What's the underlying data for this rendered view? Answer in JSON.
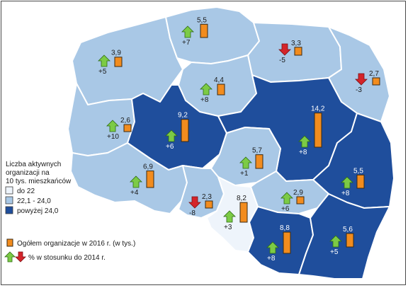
{
  "legend": {
    "title_lines": [
      "Liczba aktywnych",
      "organizacji na",
      "10 tys. mieszkańców"
    ],
    "classes": [
      {
        "label": "do 22",
        "color": "#eef4fb"
      },
      {
        "label": "22,1 - 24,0",
        "color": "#a9c8e6"
      },
      {
        "label": "powyżej 24,0",
        "color": "#1f4e9c"
      }
    ],
    "bar_label": "Ogółem organizacje w 2016 r. (w tys.)",
    "change_label": "% w stosunku do 2014 r."
  },
  "colors": {
    "bar": "#f28c1e",
    "increase": "#7ccb45",
    "decrease": "#d4242a"
  },
  "regions": [
    {
      "id": "pomorskie",
      "class": "22,1 - 24,0",
      "value": "5,5",
      "value_num": 5.5,
      "change": "+7",
      "direction": "up"
    },
    {
      "id": "zachodniopomorskie",
      "class": "22,1 - 24,0",
      "value": "3,9",
      "value_num": 3.9,
      "change": "+5",
      "direction": "up"
    },
    {
      "id": "warminsko-mazurskie",
      "class": "22,1 - 24,0",
      "value": "3,3",
      "value_num": 3.3,
      "change": "-5",
      "direction": "down"
    },
    {
      "id": "podlaskie",
      "class": "22,1 - 24,0",
      "value": "2,7",
      "value_num": 2.7,
      "change": "-3",
      "direction": "down"
    },
    {
      "id": "kujawsko-pomorskie",
      "class": "22,1 - 24,0",
      "value": "4,4",
      "value_num": 4.4,
      "change": "+8",
      "direction": "up"
    },
    {
      "id": "lubuskie",
      "class": "22,1 - 24,0",
      "value": "2,6",
      "value_num": 2.6,
      "change": "+10",
      "direction": "up"
    },
    {
      "id": "wielkopolskie",
      "class": "powyżej 24,0",
      "value": "9,2",
      "value_num": 9.2,
      "change": "+6",
      "direction": "up"
    },
    {
      "id": "mazowieckie",
      "class": "powyżej 24,0",
      "value": "14,2",
      "value_num": 14.2,
      "change": "+8",
      "direction": "up"
    },
    {
      "id": "lodzkie",
      "class": "22,1 - 24,0",
      "value": "5,7",
      "value_num": 5.7,
      "change": "+1",
      "direction": "up"
    },
    {
      "id": "lubelskie",
      "class": "powyżej 24,0",
      "value": "5,5",
      "value_num": 5.5,
      "change": "+8",
      "direction": "up"
    },
    {
      "id": "dolnoslaskie",
      "class": "22,1 - 24,0",
      "value": "6,9",
      "value_num": 6.9,
      "change": "+4",
      "direction": "up"
    },
    {
      "id": "opolskie",
      "class": "22,1 - 24,0",
      "value": "2,3",
      "value_num": 2.3,
      "change": "-8",
      "direction": "down"
    },
    {
      "id": "slaskie",
      "class": "do 22",
      "value": "8,2",
      "value_num": 8.2,
      "change": "+3",
      "direction": "up"
    },
    {
      "id": "swietokrzyskie",
      "class": "22,1 - 24,0",
      "value": "2,9",
      "value_num": 2.9,
      "change": "+6",
      "direction": "up"
    },
    {
      "id": "malopolskie",
      "class": "powyżej 24,0",
      "value": "8,8",
      "value_num": 8.8,
      "change": "+8",
      "direction": "up"
    },
    {
      "id": "podkarpackie",
      "class": "powyżej 24,0",
      "value": "5,6",
      "value_num": 5.6,
      "change": "+5",
      "direction": "up"
    }
  ]
}
